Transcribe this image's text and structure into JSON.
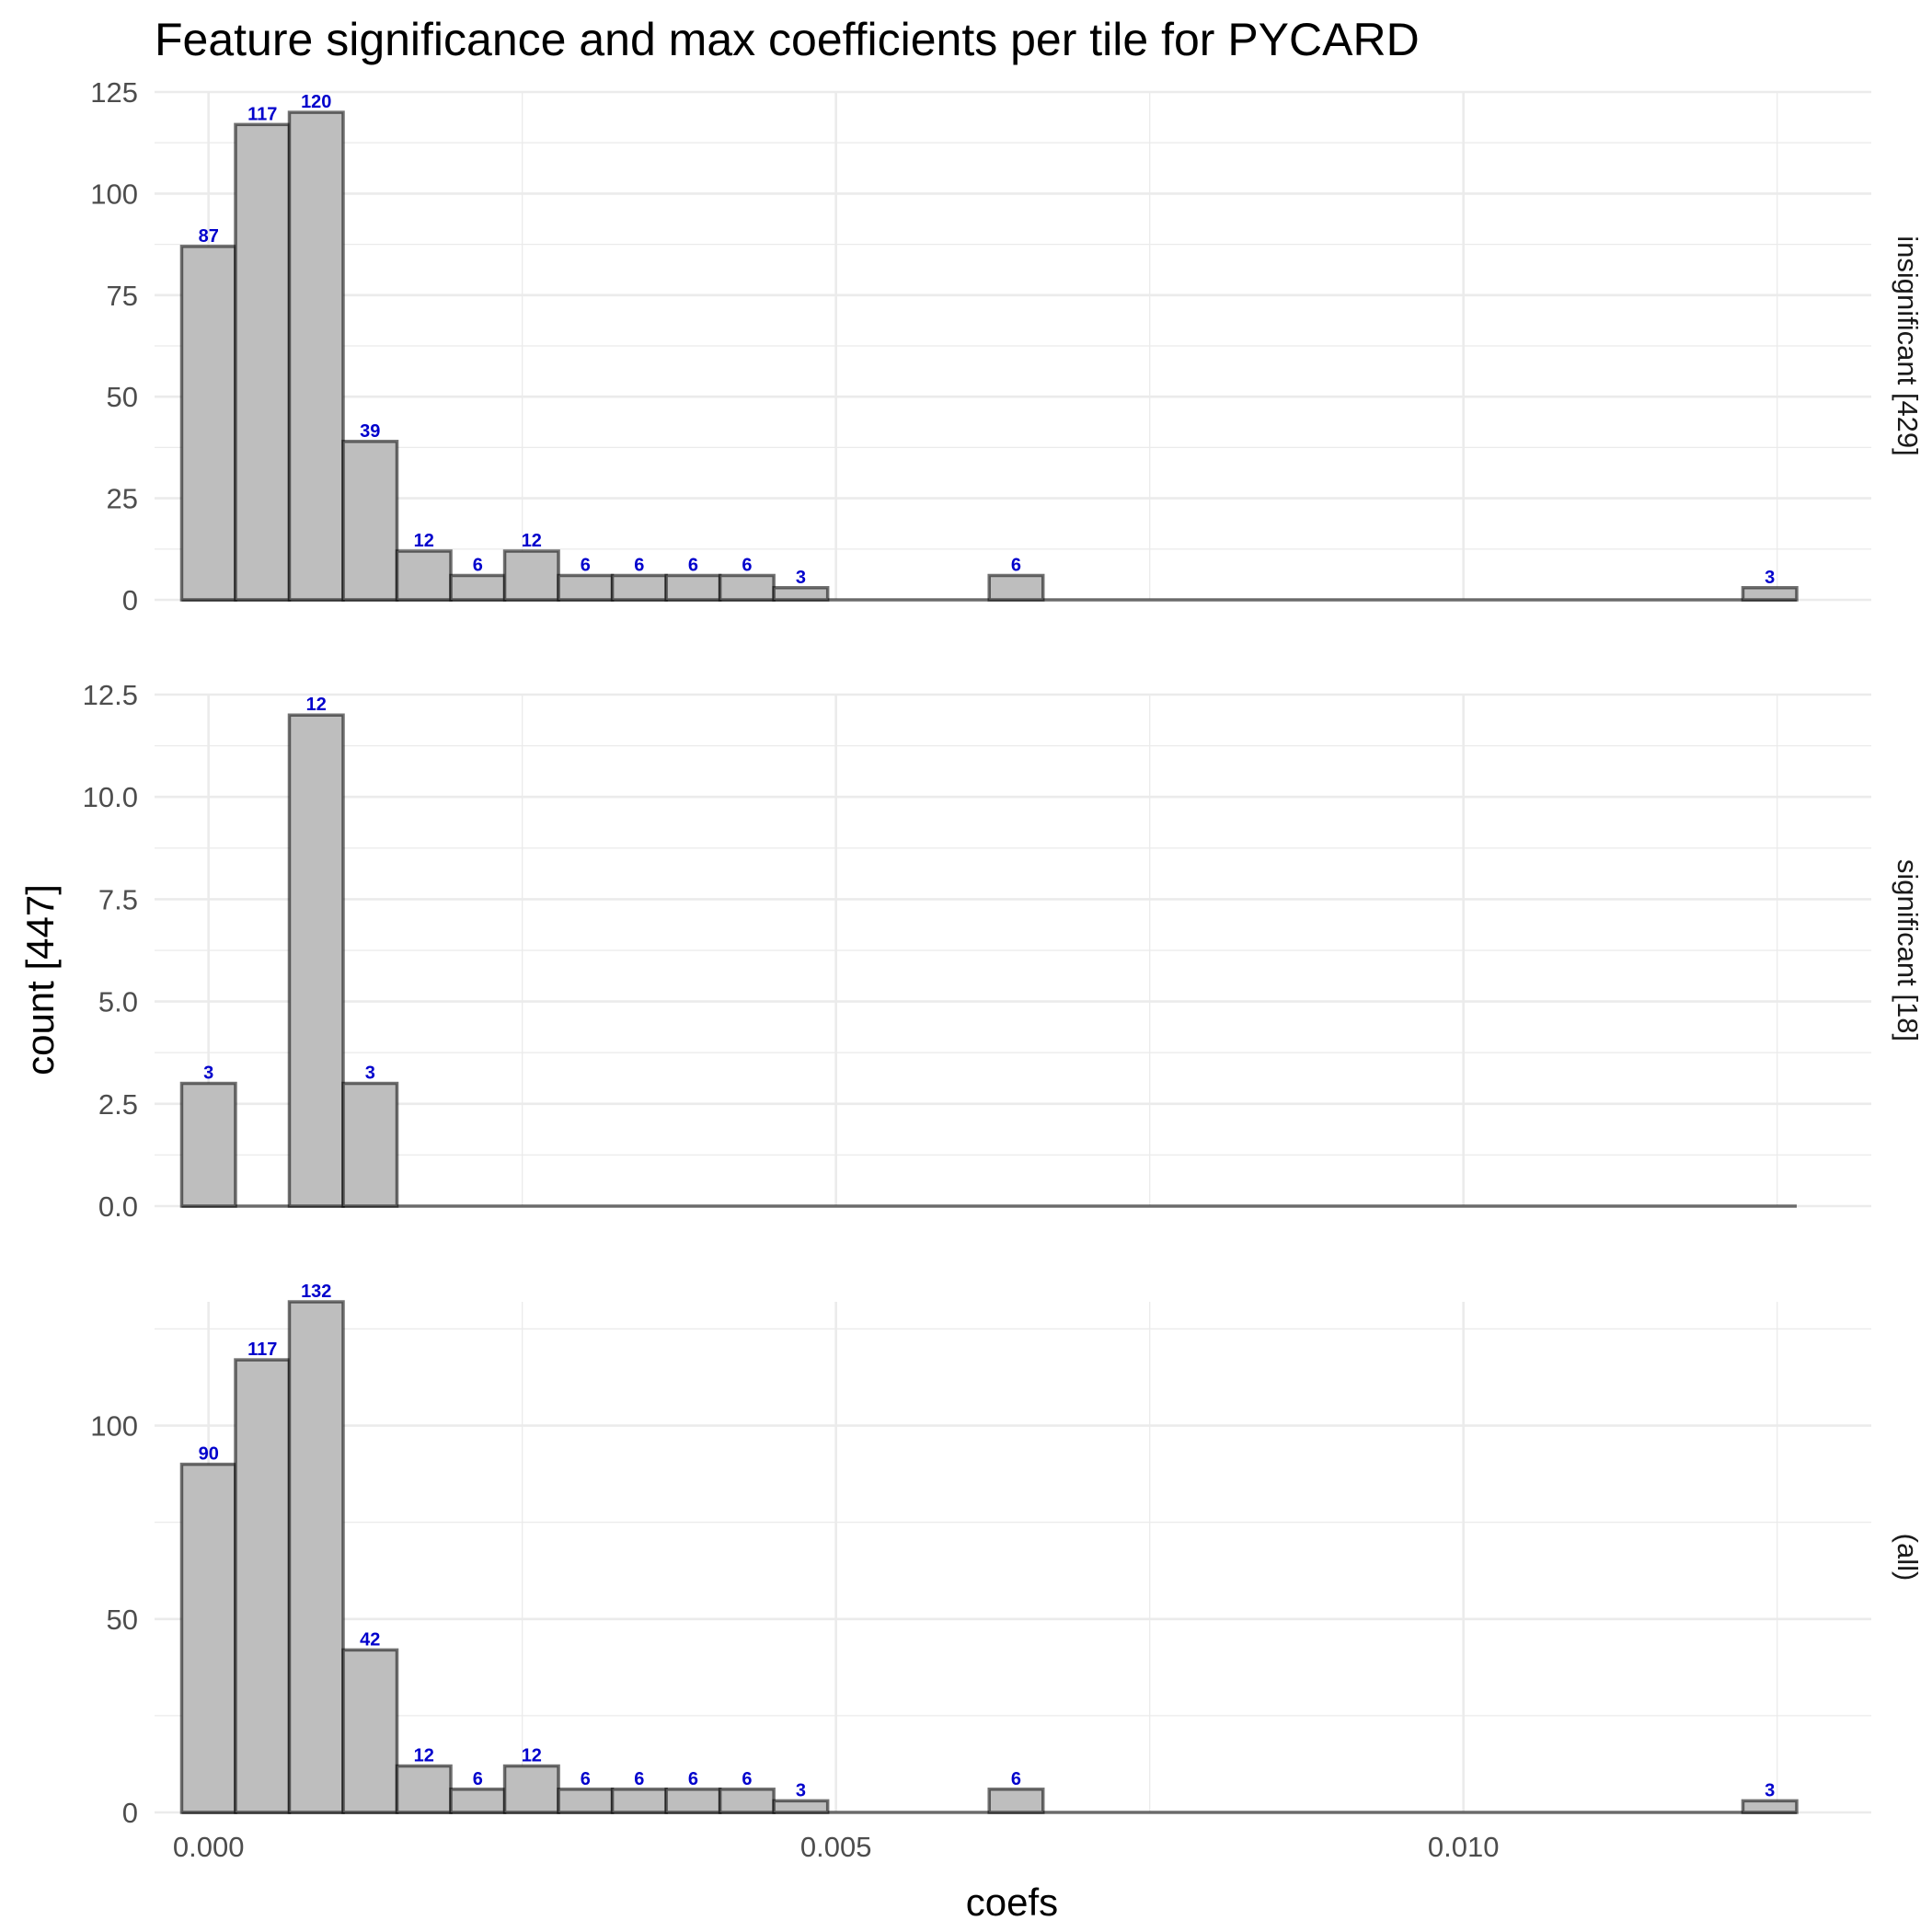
{
  "chart_data": {
    "type": "bar",
    "title": "Feature significance and max coefficients per tile for PYCARD",
    "xlabel": "coefs",
    "ylabel": "count [447]",
    "xlim": [
      -0.00043,
      0.01325
    ],
    "x_ticks": [
      0.0,
      0.005,
      0.01
    ],
    "x_tick_labels": [
      "0.000",
      "0.005",
      "0.010"
    ],
    "bin_width": 0.000429,
    "bin_start": -0.000214,
    "n_bins": 30,
    "grid": true,
    "colors": {
      "bar_fill": "#bebebe",
      "label": "#0000cc"
    },
    "panels": [
      {
        "strip": "insignificant [429]",
        "ylim": [
          0,
          125
        ],
        "y_ticks": [
          0,
          25,
          50,
          75,
          100,
          125
        ],
        "y_tick_labels": [
          "0",
          "25",
          "50",
          "75",
          "100",
          "125"
        ],
        "counts": [
          87,
          117,
          120,
          39,
          12,
          6,
          12,
          6,
          6,
          6,
          6,
          3,
          0,
          0,
          0,
          6,
          0,
          0,
          0,
          0,
          0,
          0,
          0,
          0,
          0,
          0,
          0,
          0,
          0,
          3
        ]
      },
      {
        "strip": "significant [18]",
        "ylim": [
          0,
          12.5
        ],
        "y_ticks": [
          0,
          2.5,
          5,
          7.5,
          10,
          12.5
        ],
        "y_tick_labels": [
          "0.0",
          "2.5",
          "5.0",
          "7.5",
          "10.0",
          "12.5"
        ],
        "counts": [
          3,
          0,
          12,
          3,
          0,
          0,
          0,
          0,
          0,
          0,
          0,
          0,
          0,
          0,
          0,
          0,
          0,
          0,
          0,
          0,
          0,
          0,
          0,
          0,
          0,
          0,
          0,
          0,
          0,
          0
        ]
      },
      {
        "strip": "(all)",
        "ylim": [
          0,
          132
        ],
        "y_ticks": [
          0,
          50,
          100
        ],
        "y_tick_labels": [
          "0",
          "50",
          "100"
        ],
        "counts": [
          90,
          117,
          132,
          42,
          12,
          6,
          12,
          6,
          6,
          6,
          6,
          3,
          0,
          0,
          0,
          6,
          0,
          0,
          0,
          0,
          0,
          0,
          0,
          0,
          0,
          0,
          0,
          0,
          0,
          3
        ]
      }
    ]
  }
}
